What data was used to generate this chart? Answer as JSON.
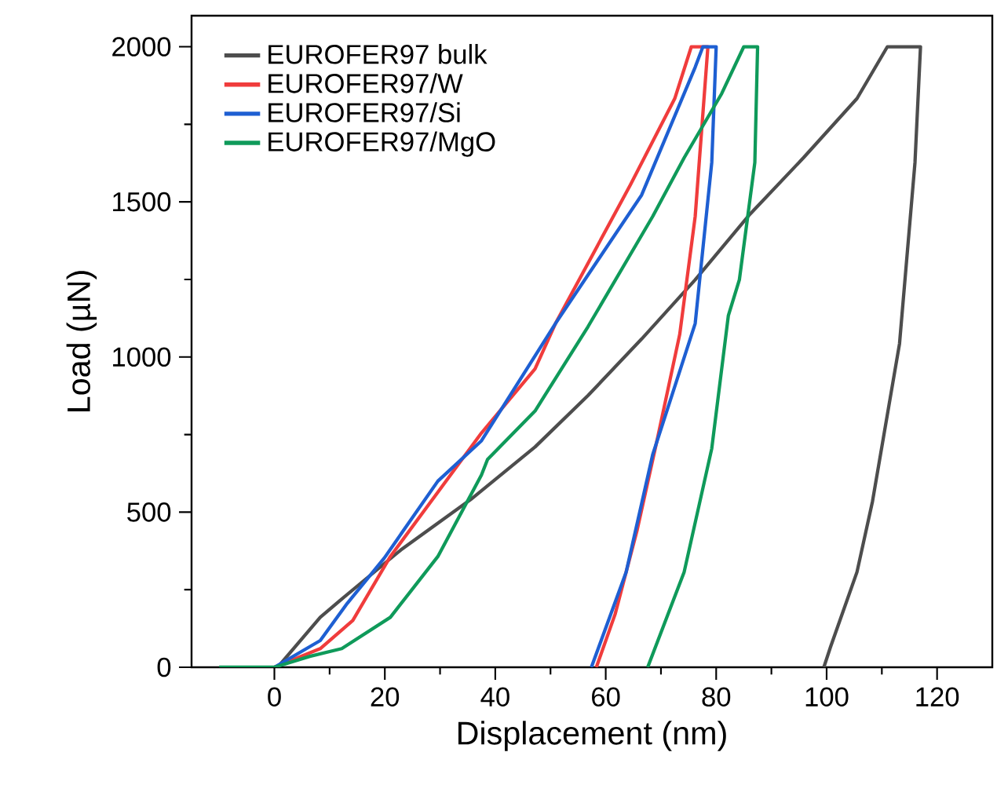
{
  "chart_data": {
    "type": "line",
    "xlabel": "Displacement (nm)",
    "ylabel": "Load (µN)",
    "xlim": [
      -15,
      130
    ],
    "ylim": [
      0,
      2100
    ],
    "xticks": [
      0,
      20,
      40,
      60,
      80,
      100,
      120
    ],
    "yticks": [
      0,
      500,
      1000,
      1500,
      2000
    ],
    "legend": "top left",
    "marker": "none",
    "line_style": "solid",
    "series": [
      {
        "name": "EUROFER97 bulk",
        "color": "#4d4d4d",
        "x": [
          0.6,
          8.3,
          12.2,
          22.9,
          35.5,
          47.2,
          56.8,
          66.5,
          76.2,
          85.9,
          95.8,
          105.5,
          111,
          117,
          116,
          113.2,
          108.3,
          105.5,
          100.7,
          99.5
        ],
        "values": [
          0,
          161,
          220,
          378,
          540,
          710,
          876,
          1058,
          1249,
          1456,
          1642,
          1833,
          2000,
          2000,
          1627,
          1043,
          534,
          307,
          65,
          0
        ]
      },
      {
        "name": "EUROFER97/W",
        "color": "#f03c3c",
        "x": [
          0,
          8.3,
          14.2,
          21,
          29.6,
          37.5,
          47.2,
          50.9,
          64.5,
          72.5,
          75.5,
          78.5,
          76.2,
          73.4,
          69.4,
          65.7,
          61.7,
          58.3
        ],
        "values": [
          0,
          60,
          151,
          357,
          564,
          755,
          962,
          1108,
          1556,
          1833,
          2000,
          2000,
          1453,
          1073,
          740,
          443,
          171,
          0
        ]
      },
      {
        "name": "EUROFER97/Si",
        "color": "#1e5fd2",
        "x": [
          0,
          8.3,
          13.2,
          19.9,
          29.6,
          37.5,
          50.9,
          66.5,
          76.2,
          77.6,
          80,
          79.2,
          76.2,
          68.5,
          63.7,
          57.4
        ],
        "values": [
          0,
          86,
          206,
          352,
          600,
          730,
          1108,
          1522,
          1934,
          2000,
          2000,
          1627,
          1108,
          685,
          307,
          0
        ]
      },
      {
        "name": "EUROFER97/MgO",
        "color": "#0f9a5a",
        "x": [
          -10,
          0,
          6.4,
          12.2,
          21,
          29.6,
          37.5,
          38.6,
          47.2,
          56.8,
          68.5,
          74.2,
          81,
          85,
          87.5,
          87,
          84.2,
          82.2,
          79.2,
          74.2,
          67.6
        ],
        "values": [
          0,
          0,
          35,
          60,
          161,
          357,
          620,
          670,
          826,
          1098,
          1453,
          1642,
          1849,
          2000,
          2000,
          1627,
          1249,
          1133,
          705,
          307,
          0
        ]
      }
    ]
  }
}
